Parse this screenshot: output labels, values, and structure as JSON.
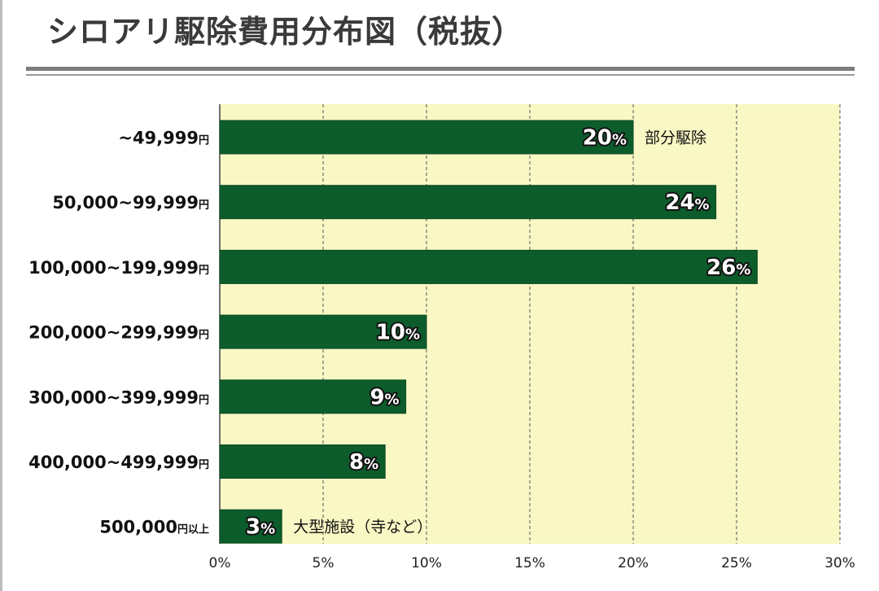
{
  "chart_data": {
    "type": "bar",
    "orientation": "horizontal",
    "title": "シロアリ駆除費用分布図（税抜）",
    "categories": [
      {
        "main": "~49,999",
        "unit": "円"
      },
      {
        "main": "50,000~99,999",
        "unit": "円"
      },
      {
        "main": "100,000~199,999",
        "unit": "円"
      },
      {
        "main": "200,000~299,999",
        "unit": "円"
      },
      {
        "main": "300,000~399,999",
        "unit": "円"
      },
      {
        "main": "400,000~499,999",
        "unit": "円"
      },
      {
        "main": "500,000",
        "unit": "円以上"
      }
    ],
    "values": [
      20,
      24,
      26,
      10,
      9,
      8,
      3
    ],
    "value_unit": "%",
    "annotations": [
      {
        "index": 0,
        "text": "部分駆除"
      },
      {
        "index": 6,
        "text": "大型施設（寺など）"
      }
    ],
    "xlim": [
      0,
      30
    ],
    "xticks": [
      0,
      5,
      10,
      15,
      20,
      25,
      30
    ],
    "tick_suffix": "%",
    "grid": true,
    "colors": {
      "bar": "#0d5c2c",
      "plot_background": "#f9f7c4",
      "grid": "#555555"
    }
  }
}
